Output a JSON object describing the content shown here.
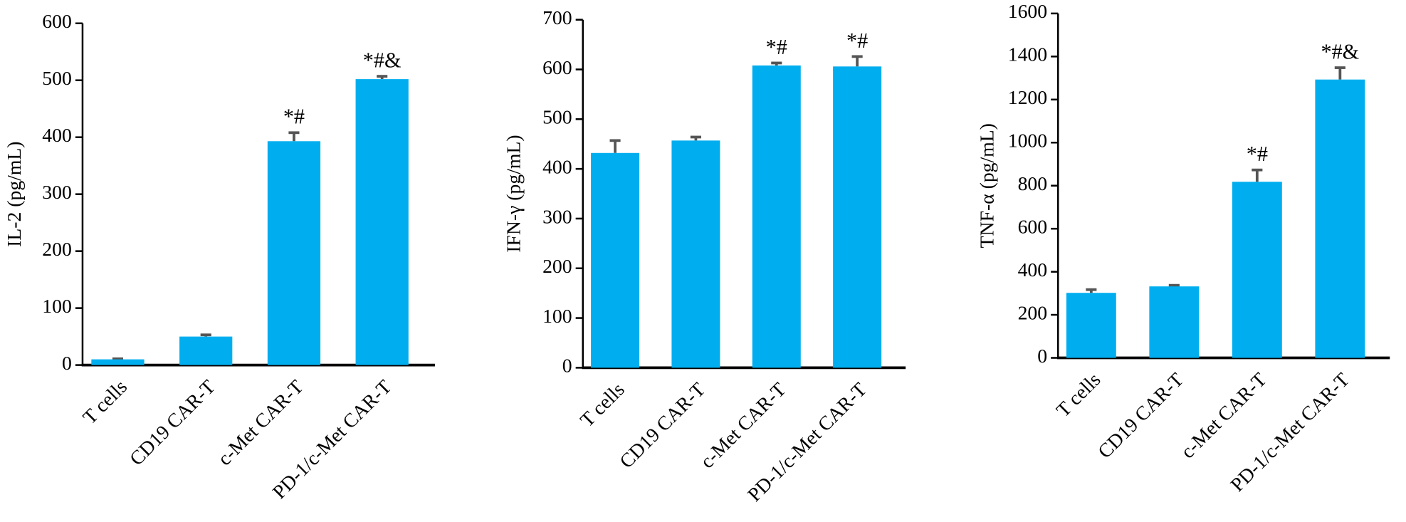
{
  "chart_data": [
    {
      "type": "bar",
      "y_label": "IL-2 (pg/mL)",
      "categories": [
        "T cells",
        "CD19 CAR-T",
        "c-Met CAR-T",
        "PD-1/c-Met CAR-T"
      ],
      "values": [
        10,
        50,
        393,
        502
      ],
      "errors": [
        1,
        3,
        15,
        5
      ],
      "annotations": [
        null,
        null,
        "*#",
        "*#&"
      ],
      "color": "#00aeef",
      "error_color": "#555555",
      "ylim": [
        0,
        600
      ],
      "yticks": [
        0,
        100,
        200,
        300,
        400,
        500,
        600
      ]
    },
    {
      "type": "bar",
      "y_label": "IFN-γ (pg/mL)",
      "categories": [
        "T cells",
        "CD19 CAR-T",
        "c-Met CAR-T",
        "PD-1/c-Met CAR-T"
      ],
      "values": [
        432,
        457,
        608,
        606
      ],
      "errors": [
        25,
        7,
        5,
        20
      ],
      "annotations": [
        null,
        null,
        "*#",
        "*#"
      ],
      "color": "#00aeef",
      "error_color": "#555555",
      "ylim": [
        0,
        700
      ],
      "yticks": [
        0,
        100,
        200,
        300,
        400,
        500,
        600,
        700
      ]
    },
    {
      "type": "bar",
      "y_label": "TNF-α (pg/mL)",
      "categories": [
        "T cells",
        "CD19 CAR-T",
        "c-Met CAR-T",
        "PD-1/c-Met CAR-T"
      ],
      "values": [
        302,
        332,
        818,
        1293
      ],
      "errors": [
        15,
        5,
        55,
        55
      ],
      "annotations": [
        null,
        null,
        "*#",
        "*#&"
      ],
      "color": "#00aeef",
      "error_color": "#555555",
      "ylim": [
        0,
        1600
      ],
      "yticks": [
        0,
        200,
        400,
        600,
        800,
        1000,
        1200,
        1400,
        1600
      ]
    }
  ]
}
